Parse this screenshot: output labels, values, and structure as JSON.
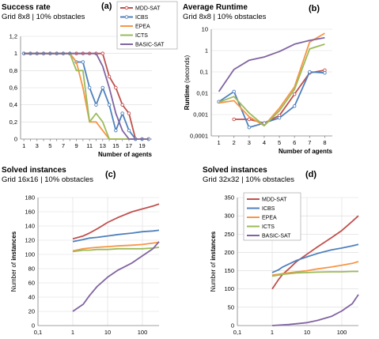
{
  "colors": {
    "MDD-SAT": "#c0504d",
    "ICBS": "#4f81bd",
    "EPEA": "#f79646",
    "ICTS": "#9bbb59",
    "BASIC-SAT": "#8064a2"
  },
  "chart_data": [
    {
      "id": "a",
      "tag": "(a)",
      "type": "line",
      "title": "Success rate",
      "subtitle": "Grid 8x8 | 10% obstacles",
      "xlabel": "Number of agents",
      "ylabel": "",
      "x": [
        1,
        2,
        3,
        4,
        5,
        6,
        7,
        8,
        9,
        10,
        11,
        12,
        13,
        14,
        15,
        16,
        17,
        18,
        19,
        20
      ],
      "xticks": [
        "1",
        "3",
        "5",
        "7",
        "9",
        "11",
        "13",
        "15",
        "17",
        "19"
      ],
      "ylim": [
        0,
        1.2
      ],
      "yticks": [
        "0",
        "0,2",
        "0,4",
        "0,6",
        "0,8",
        "1",
        "1,2"
      ],
      "grid": true,
      "series": [
        {
          "name": "MDD-SAT",
          "values": [
            1,
            1,
            1,
            1,
            1,
            1,
            1,
            1,
            1,
            1,
            1,
            1,
            1,
            0.73,
            0.6,
            0.4,
            0.3,
            0,
            0,
            0
          ]
        },
        {
          "name": "ICBS",
          "values": [
            1,
            1,
            1,
            1,
            1,
            1,
            1,
            1,
            0.9,
            0.9,
            0.6,
            0.4,
            0.6,
            0.4,
            0.1,
            0.3,
            0.1,
            0,
            0,
            0
          ]
        },
        {
          "name": "EPEA",
          "values": [
            1,
            1,
            1,
            1,
            1,
            1,
            1,
            1,
            0.9,
            0.6,
            0.2,
            0.2,
            0.1,
            0,
            0,
            0,
            0,
            0,
            0,
            0
          ]
        },
        {
          "name": "ICTS",
          "values": [
            1,
            1,
            1,
            1,
            1,
            1,
            1,
            1,
            0.8,
            0.8,
            0.2,
            0.3,
            0.2,
            0,
            0,
            0,
            0,
            0,
            0,
            0
          ]
        },
        {
          "name": "BASIC-SAT",
          "values": [
            1,
            1,
            1,
            1,
            1,
            1,
            1,
            1,
            1,
            1,
            1,
            1,
            0.85,
            0.6,
            0.3,
            0.1,
            0,
            0,
            0,
            0
          ]
        }
      ],
      "legend": [
        "MDD-SAT",
        "ICBS",
        "EPEA",
        "ICTS",
        "BASIC-SAT"
      ],
      "legend_placement": "top-right"
    },
    {
      "id": "b",
      "tag": "(b)",
      "type": "line",
      "title": "Average Runtime",
      "subtitle": "Grid 8x8 | 10% obstacles",
      "xlabel": "Number of agents",
      "ylabel": "Runtime (seconds)",
      "x": [
        1,
        2,
        3,
        4,
        5,
        6,
        7,
        8
      ],
      "xticks": [
        "1",
        "2",
        "3",
        "4",
        "5",
        "6",
        "7",
        "8"
      ],
      "yscale": "log",
      "ylim": [
        0.0001,
        10
      ],
      "yticks": [
        "0,0001",
        "0,001",
        "0,01",
        "0,1",
        "1",
        "10"
      ],
      "grid": true,
      "series": [
        {
          "name": "MDD-SAT",
          "values": [
            null,
            0.0006,
            0.0006,
            0.0004,
            0.0009,
            0.009,
            0.09,
            0.12
          ]
        },
        {
          "name": "ICBS",
          "values": [
            0.004,
            0.012,
            0.00025,
            0.0004,
            0.0007,
            0.0025,
            0.1,
            0.09
          ]
        },
        {
          "name": "EPEA",
          "values": [
            0.0035,
            0.0045,
            0.0008,
            0.0003,
            0.002,
            0.02,
            2.5,
            6.5
          ]
        },
        {
          "name": "ICTS",
          "values": [
            0.0038,
            0.007,
            0.0012,
            0.0003,
            0.0015,
            0.015,
            1.2,
            2.0
          ]
        },
        {
          "name": "BASIC-SAT",
          "values": [
            0.012,
            0.13,
            0.35,
            0.5,
            0.9,
            2.0,
            3.0,
            4.0
          ]
        }
      ]
    },
    {
      "id": "c",
      "tag": "(c)",
      "type": "line",
      "title": "Solved instances",
      "subtitle": "Grid 16x16 | 10% obstacles",
      "xlabel": "Runtime (seconds)",
      "ylabel": "Number of instances",
      "xscale": "log",
      "xlim": [
        0.1,
        300
      ],
      "xticks": [
        "0,1",
        "1",
        "10",
        "100"
      ],
      "ylim": [
        0,
        180
      ],
      "yticks": [
        "0",
        "20",
        "40",
        "60",
        "80",
        "100",
        "120",
        "140",
        "160",
        "180"
      ],
      "grid": true,
      "series": [
        {
          "name": "MDD-SAT",
          "x": [
            1,
            2,
            3,
            5,
            10,
            20,
            50,
            100,
            200,
            300
          ],
          "values": [
            122,
            126,
            130,
            136,
            145,
            152,
            160,
            164,
            168,
            171
          ]
        },
        {
          "name": "ICBS",
          "x": [
            1,
            2,
            3,
            5,
            10,
            20,
            50,
            100,
            200,
            300
          ],
          "values": [
            118,
            121,
            123,
            124,
            126,
            128,
            130,
            132,
            133,
            134
          ]
        },
        {
          "name": "EPEA",
          "x": [
            1,
            2,
            3,
            5,
            10,
            20,
            50,
            100,
            200,
            300
          ],
          "values": [
            105,
            108,
            109,
            110,
            111,
            112,
            113,
            114,
            116,
            117
          ]
        },
        {
          "name": "ICTS",
          "x": [
            1,
            2,
            3,
            5,
            10,
            20,
            50,
            100,
            200,
            300
          ],
          "values": [
            104,
            106,
            106,
            107,
            107,
            108,
            108,
            108,
            109,
            110
          ]
        },
        {
          "name": "BASIC-SAT",
          "x": [
            1,
            2,
            3,
            5,
            10,
            20,
            50,
            100,
            200,
            300
          ],
          "values": [
            20,
            30,
            42,
            55,
            68,
            78,
            88,
            98,
            108,
            118
          ]
        }
      ]
    },
    {
      "id": "d",
      "tag": "(d)",
      "type": "line",
      "title": "Solved instances",
      "subtitle": "Grid 32x32 | 10% obstacles",
      "xlabel": "Runtime (seconds)",
      "ylabel": "Number of instances",
      "xscale": "log",
      "xlim": [
        0.1,
        300
      ],
      "xticks": [
        "0,1",
        "1",
        "10",
        "100"
      ],
      "ylim": [
        0,
        350
      ],
      "yticks": [
        "0",
        "50",
        "100",
        "150",
        "200",
        "250",
        "300",
        "350"
      ],
      "grid": true,
      "series": [
        {
          "name": "MDD-SAT",
          "x": [
            1,
            1.5,
            2,
            3,
            5,
            10,
            20,
            50,
            100,
            200,
            300
          ],
          "values": [
            100,
            125,
            140,
            155,
            175,
            195,
            215,
            240,
            260,
            285,
            300
          ]
        },
        {
          "name": "ICBS",
          "x": [
            1,
            1.5,
            2,
            3,
            5,
            10,
            20,
            50,
            100,
            200,
            300
          ],
          "values": [
            145,
            152,
            160,
            168,
            178,
            188,
            197,
            207,
            212,
            218,
            222
          ]
        },
        {
          "name": "EPEA",
          "x": [
            1,
            1.5,
            2,
            3,
            5,
            10,
            20,
            50,
            100,
            200,
            300
          ],
          "values": [
            138,
            140,
            142,
            144,
            147,
            150,
            155,
            160,
            165,
            170,
            175
          ]
        },
        {
          "name": "ICTS",
          "x": [
            1,
            1.5,
            2,
            3,
            5,
            10,
            20,
            50,
            100,
            200,
            300
          ],
          "values": [
            135,
            138,
            140,
            142,
            144,
            145,
            146,
            147,
            147,
            148,
            148
          ]
        },
        {
          "name": "BASIC-SAT",
          "x": [
            1,
            2,
            3,
            5,
            10,
            20,
            50,
            100,
            200,
            300
          ],
          "values": [
            0,
            2,
            3,
            5,
            8,
            14,
            25,
            40,
            60,
            85
          ]
        }
      ],
      "legend": [
        "MDD-SAT",
        "ICBS",
        "EPEA",
        "ICTS",
        "BASIC-SAT"
      ],
      "legend_placement": "top-left"
    }
  ]
}
